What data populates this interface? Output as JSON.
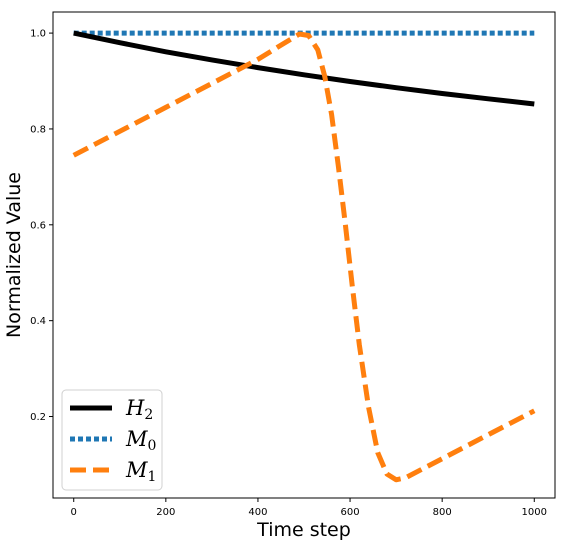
{
  "chart_data": {
    "type": "line",
    "xlabel": "Time step",
    "ylabel": "Normalized Value",
    "xlim": [
      -45,
      1045
    ],
    "ylim": [
      0.03,
      1.044
    ],
    "xticks": [
      0,
      200,
      400,
      600,
      800,
      1000
    ],
    "yticks": [
      0.2,
      0.4,
      0.6,
      0.8,
      1.0
    ],
    "grid": false,
    "legend_position": "lower-left",
    "series": [
      {
        "name": "H",
        "subscript": "2",
        "color": "#000000",
        "style": "solid",
        "x": [
          0,
          100,
          200,
          300,
          400,
          500,
          600,
          700,
          800,
          900,
          1000
        ],
        "values": [
          1.0,
          0.98,
          0.961,
          0.944,
          0.928,
          0.913,
          0.899,
          0.886,
          0.874,
          0.863,
          0.852
        ]
      },
      {
        "name": "M",
        "subscript": "0",
        "color": "#1f77b4",
        "style": "dotted",
        "x": [
          0,
          1000
        ],
        "values": [
          1.0,
          1.0
        ]
      },
      {
        "name": "M",
        "subscript": "1",
        "color": "#ff7f0e",
        "style": "dashed",
        "x": [
          0,
          100,
          200,
          300,
          400,
          450,
          490,
          510,
          530,
          545,
          560,
          575,
          590,
          605,
          620,
          640,
          660,
          680,
          700,
          720,
          760,
          800,
          850,
          900,
          950,
          1000
        ],
        "values": [
          0.745,
          0.795,
          0.845,
          0.895,
          0.945,
          0.975,
          0.998,
          0.995,
          0.965,
          0.91,
          0.83,
          0.72,
          0.6,
          0.47,
          0.35,
          0.22,
          0.125,
          0.08,
          0.068,
          0.072,
          0.092,
          0.112,
          0.137,
          0.162,
          0.187,
          0.212
        ]
      }
    ]
  }
}
